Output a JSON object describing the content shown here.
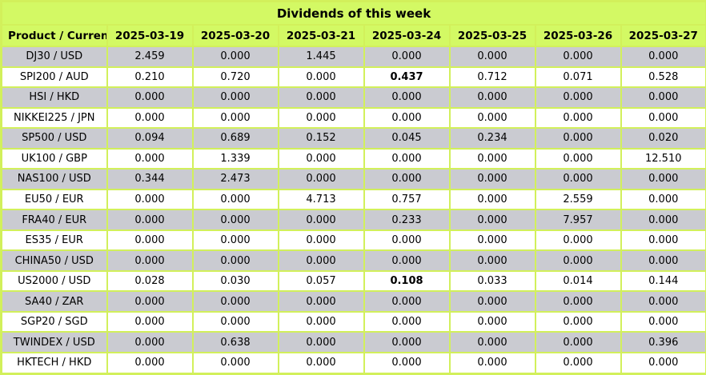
{
  "title": "Dividends of this week",
  "colors": {
    "header_bg": "#D3F964",
    "grid_line": "#D2F05B",
    "stripe_row_bg": "#CACBD1",
    "plain_row_bg": "#FFFFFF",
    "text": "#000000"
  },
  "chart_data": {
    "type": "table",
    "title": "Dividends of this week",
    "product_column_header": "Product / Currency",
    "date_columns": [
      "2025-03-19",
      "2025-03-20",
      "2025-03-21",
      "2025-03-24",
      "2025-03-25",
      "2025-03-26",
      "2025-03-27"
    ],
    "rows": [
      {
        "product": "DJ30 / USD",
        "values": [
          "2.459",
          "0.000",
          "1.445",
          "0.000",
          "0.000",
          "0.000",
          "0.000"
        ],
        "bold_columns": []
      },
      {
        "product": "SPI200 / AUD",
        "values": [
          "0.210",
          "0.720",
          "0.000",
          "0.437",
          "0.712",
          "0.071",
          "0.528"
        ],
        "bold_columns": [
          3
        ]
      },
      {
        "product": "HSI / HKD",
        "values": [
          "0.000",
          "0.000",
          "0.000",
          "0.000",
          "0.000",
          "0.000",
          "0.000"
        ],
        "bold_columns": []
      },
      {
        "product": "NIKKEI225 / JPN",
        "values": [
          "0.000",
          "0.000",
          "0.000",
          "0.000",
          "0.000",
          "0.000",
          "0.000"
        ],
        "bold_columns": []
      },
      {
        "product": "SP500 / USD",
        "values": [
          "0.094",
          "0.689",
          "0.152",
          "0.045",
          "0.234",
          "0.000",
          "0.020"
        ],
        "bold_columns": []
      },
      {
        "product": "UK100 / GBP",
        "values": [
          "0.000",
          "1.339",
          "0.000",
          "0.000",
          "0.000",
          "0.000",
          "12.510"
        ],
        "bold_columns": []
      },
      {
        "product": "NAS100 / USD",
        "values": [
          "0.344",
          "2.473",
          "0.000",
          "0.000",
          "0.000",
          "0.000",
          "0.000"
        ],
        "bold_columns": []
      },
      {
        "product": "EU50 / EUR",
        "values": [
          "0.000",
          "0.000",
          "4.713",
          "0.757",
          "0.000",
          "2.559",
          "0.000"
        ],
        "bold_columns": []
      },
      {
        "product": "FRA40 / EUR",
        "values": [
          "0.000",
          "0.000",
          "0.000",
          "0.233",
          "0.000",
          "7.957",
          "0.000"
        ],
        "bold_columns": []
      },
      {
        "product": "ES35 / EUR",
        "values": [
          "0.000",
          "0.000",
          "0.000",
          "0.000",
          "0.000",
          "0.000",
          "0.000"
        ],
        "bold_columns": []
      },
      {
        "product": "CHINA50 / USD",
        "values": [
          "0.000",
          "0.000",
          "0.000",
          "0.000",
          "0.000",
          "0.000",
          "0.000"
        ],
        "bold_columns": []
      },
      {
        "product": "US2000 / USD",
        "values": [
          "0.028",
          "0.030",
          "0.057",
          "0.108",
          "0.033",
          "0.014",
          "0.144"
        ],
        "bold_columns": [
          3
        ]
      },
      {
        "product": "SA40 / ZAR",
        "values": [
          "0.000",
          "0.000",
          "0.000",
          "0.000",
          "0.000",
          "0.000",
          "0.000"
        ],
        "bold_columns": []
      },
      {
        "product": "SGP20 / SGD",
        "values": [
          "0.000",
          "0.000",
          "0.000",
          "0.000",
          "0.000",
          "0.000",
          "0.000"
        ],
        "bold_columns": []
      },
      {
        "product": "TWINDEX / USD",
        "values": [
          "0.000",
          "0.638",
          "0.000",
          "0.000",
          "0.000",
          "0.000",
          "0.396"
        ],
        "bold_columns": []
      },
      {
        "product": "HKTECH / HKD",
        "values": [
          "0.000",
          "0.000",
          "0.000",
          "0.000",
          "0.000",
          "0.000",
          "0.000"
        ],
        "bold_columns": []
      }
    ]
  }
}
